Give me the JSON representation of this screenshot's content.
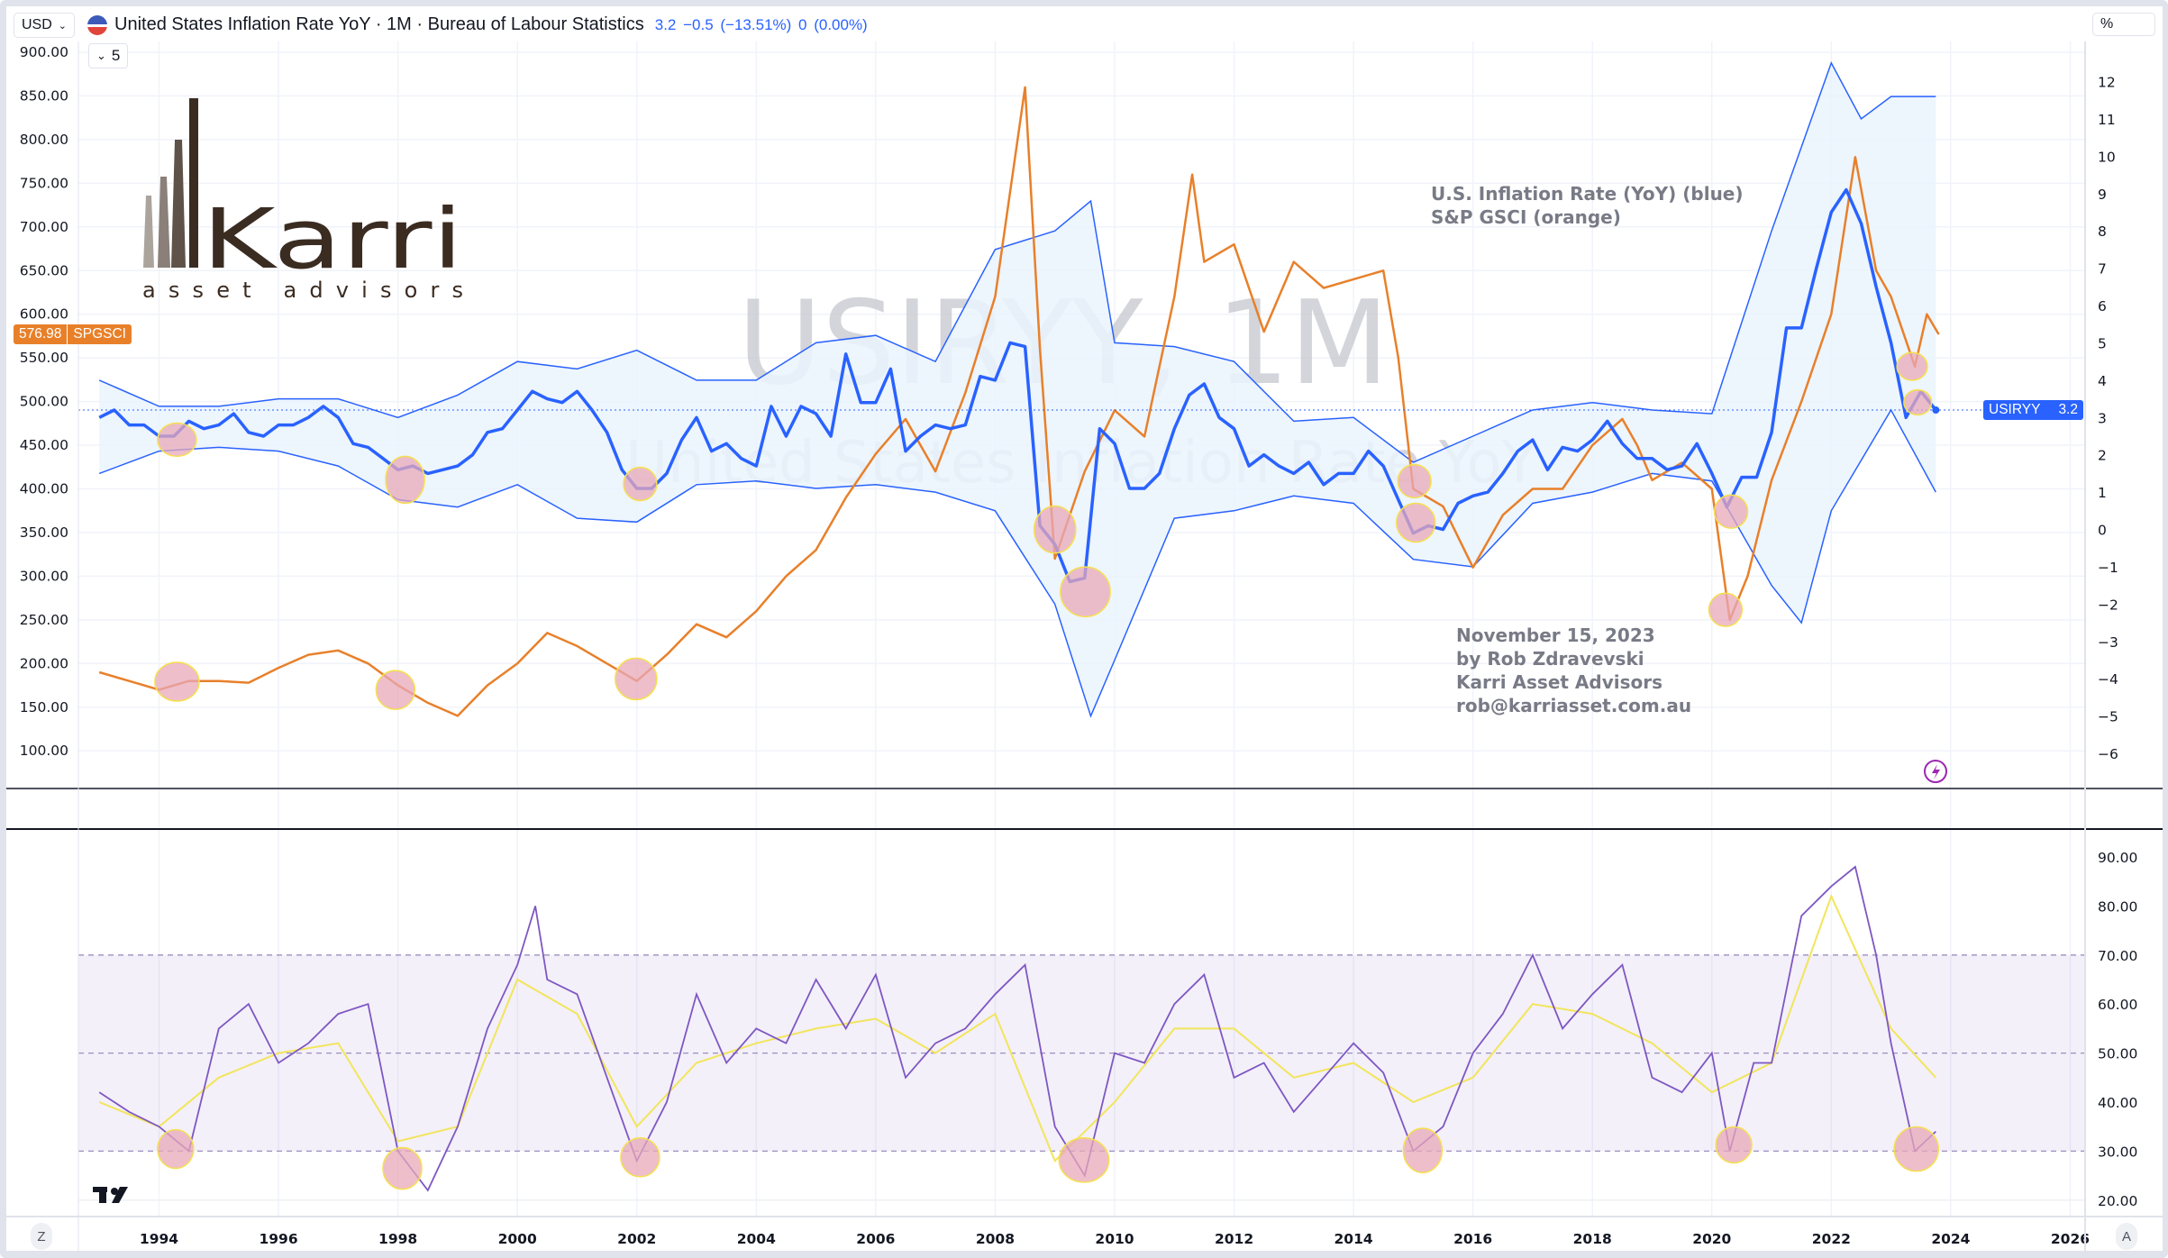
{
  "header": {
    "currency": "USD",
    "title": "United States Inflation Rate YoY · 1M · Bureau of Labour Statistics",
    "values": "3.2  −0.5 (−13.51%)  0 (0.00%)",
    "collapse_count": "5",
    "scale_mode": "%"
  },
  "watermark": {
    "symbol": "USIRYY, 1M",
    "name": "United States Inflation Rate YoY"
  },
  "logo": {
    "brand": "Karri",
    "tagline": "asset advisors"
  },
  "annotations": {
    "legend_lines": [
      "U.S. Inflation Rate (YoY) (blue)",
      "S&P GSCI (orange)"
    ],
    "credit_lines": [
      "November 15, 2023",
      "by Rob Zdravevski",
      "Karri Asset Advisors",
      "rob@karriasset.com.au"
    ]
  },
  "price_tags": {
    "spgsci": {
      "value": "576.98",
      "label": "SPGSCI"
    },
    "usiryy": {
      "label": "USIRYY",
      "value": "3.2"
    }
  },
  "buttons": {
    "auto_scale": "A",
    "zoom": "Z"
  },
  "colors": {
    "inflation": "#2962ff",
    "gsci": "#e8802a",
    "band_fill": "#eaf3fd",
    "rsi": "#7e57c2",
    "rsi_signal": "#f2e55c",
    "highlight_fill": "#e8a8b8",
    "highlight_stroke": "#f5e050"
  },
  "chart_data": [
    {
      "type": "line",
      "pane": "main",
      "x_ticks": [
        "1994",
        "1996",
        "1998",
        "2000",
        "2002",
        "2004",
        "2006",
        "2008",
        "2010",
        "2012",
        "2014",
        "2016",
        "2018",
        "2020",
        "2022",
        "2024",
        "2026"
      ],
      "left_axis": {
        "ticks": [
          "900.00",
          "850.00",
          "800.00",
          "750.00",
          "700.00",
          "650.00",
          "600.00",
          "550.00",
          "500.00",
          "450.00",
          "400.00",
          "350.00",
          "300.00",
          "250.00",
          "200.00",
          "150.00",
          "100.00"
        ],
        "ylim": [
          100,
          900
        ]
      },
      "right_axis": {
        "unit": "%",
        "ticks": [
          "12",
          "11",
          "10",
          "9",
          "8",
          "7",
          "6",
          "5",
          "4",
          "3",
          "2",
          "1",
          "0",
          "−1",
          "−2",
          "−3",
          "−4",
          "−5",
          "−6"
        ],
        "ylim": [
          -6,
          12
        ]
      },
      "series": [
        {
          "name": "USIRYY",
          "axis": "right",
          "x": [
            1993,
            1993.25,
            1993.5,
            1993.75,
            1994,
            1994.25,
            1994.5,
            1994.75,
            1995,
            1995.25,
            1995.5,
            1995.75,
            1996,
            1996.25,
            1996.5,
            1996.75,
            1997,
            1997.25,
            1997.5,
            1997.75,
            1998,
            1998.25,
            1998.5,
            1998.75,
            1999,
            1999.25,
            1999.5,
            1999.75,
            2000,
            2000.25,
            2000.5,
            2000.75,
            2001,
            2001.25,
            2001.5,
            2001.75,
            2002,
            2002.25,
            2002.5,
            2002.75,
            2003,
            2003.25,
            2003.5,
            2003.75,
            2004,
            2004.25,
            2004.5,
            2004.75,
            2005,
            2005.25,
            2005.5,
            2005.75,
            2006,
            2006.25,
            2006.5,
            2006.75,
            2007,
            2007.25,
            2007.5,
            2007.75,
            2008,
            2008.25,
            2008.5,
            2008.75,
            2009,
            2009.25,
            2009.5,
            2009.75,
            2010,
            2010.25,
            2010.5,
            2010.75,
            2011,
            2011.25,
            2011.5,
            2011.75,
            2012,
            2012.25,
            2012.5,
            2012.75,
            2013,
            2013.25,
            2013.5,
            2013.75,
            2014,
            2014.25,
            2014.5,
            2014.75,
            2015,
            2015.25,
            2015.5,
            2015.75,
            2016,
            2016.25,
            2016.5,
            2016.75,
            2017,
            2017.25,
            2017.5,
            2017.75,
            2018,
            2018.25,
            2018.5,
            2018.75,
            2019,
            2019.25,
            2019.5,
            2019.75,
            2020,
            2020.25,
            2020.5,
            2020.75,
            2021,
            2021.25,
            2021.5,
            2021.75,
            2022,
            2022.25,
            2022.5,
            2022.75,
            2023,
            2023.25,
            2023.5,
            2023.75
          ],
          "values": [
            3.0,
            3.2,
            2.8,
            2.8,
            2.5,
            2.5,
            2.9,
            2.7,
            2.8,
            3.1,
            2.6,
            2.5,
            2.8,
            2.8,
            3.0,
            3.3,
            3.0,
            2.3,
            2.2,
            1.9,
            1.6,
            1.7,
            1.5,
            1.6,
            1.7,
            2.0,
            2.6,
            2.7,
            3.2,
            3.7,
            3.5,
            3.4,
            3.7,
            3.2,
            2.6,
            1.6,
            1.1,
            1.1,
            1.5,
            2.4,
            3.0,
            2.1,
            2.3,
            1.9,
            1.7,
            3.3,
            2.5,
            3.3,
            3.1,
            2.5,
            4.7,
            3.4,
            3.4,
            4.3,
            2.1,
            2.5,
            2.8,
            2.7,
            2.8,
            4.1,
            4.0,
            5.0,
            4.9,
            0.1,
            -0.4,
            -1.4,
            -1.3,
            2.7,
            2.3,
            1.1,
            1.1,
            1.5,
            2.7,
            3.6,
            3.9,
            3.0,
            2.7,
            1.7,
            2.0,
            1.7,
            1.5,
            1.8,
            1.2,
            1.5,
            1.5,
            2.1,
            1.7,
            0.8,
            -0.1,
            0.1,
            0.0,
            0.7,
            0.9,
            1.0,
            1.5,
            2.1,
            2.4,
            1.6,
            2.2,
            2.1,
            2.4,
            2.9,
            2.3,
            1.9,
            1.9,
            1.6,
            1.7,
            2.3,
            1.5,
            0.6,
            1.4,
            1.4,
            2.6,
            5.4,
            5.4,
            7.0,
            8.5,
            9.1,
            8.2,
            6.5,
            5.0,
            3.0,
            3.7,
            3.2
          ]
        },
        {
          "name": "Upper band",
          "axis": "right",
          "x": [
            1993,
            1994,
            1995,
            1996,
            1997,
            1998,
            1999,
            2000,
            2001,
            2002,
            2003,
            2004,
            2005,
            2006,
            2007,
            2008,
            2009,
            2009.6,
            2010,
            2011,
            2012,
            2013,
            2014,
            2015,
            2016,
            2017,
            2018,
            2019,
            2020,
            2021,
            2022,
            2022.5,
            2023,
            2023.75
          ],
          "values": [
            4.0,
            3.3,
            3.3,
            3.5,
            3.5,
            3.0,
            3.6,
            4.5,
            4.3,
            4.8,
            4.0,
            4.0,
            5.0,
            5.2,
            4.5,
            7.5,
            8.0,
            8.8,
            5.0,
            4.9,
            4.5,
            2.9,
            3.0,
            1.8,
            2.5,
            3.2,
            3.4,
            3.2,
            3.1,
            8.0,
            12.5,
            11.0,
            11.6,
            11.6
          ]
        },
        {
          "name": "Lower band",
          "axis": "right",
          "x": [
            1993,
            1994,
            1995,
            1996,
            1997,
            1998,
            1999,
            2000,
            2001,
            2002,
            2003,
            2004,
            2005,
            2006,
            2007,
            2008,
            2009,
            2009.6,
            2010,
            2011,
            2012,
            2013,
            2014,
            2015,
            2016,
            2017,
            2018,
            2019,
            2020,
            2021,
            2021.5,
            2022,
            2023,
            2023.75
          ],
          "values": [
            1.5,
            2.1,
            2.2,
            2.1,
            1.7,
            0.8,
            0.6,
            1.2,
            0.3,
            0.2,
            1.2,
            1.3,
            1.1,
            1.2,
            1.0,
            0.5,
            -2.0,
            -5.0,
            -3.5,
            0.3,
            0.5,
            0.9,
            0.7,
            -0.8,
            -1.0,
            0.7,
            1.0,
            1.5,
            1.3,
            -1.5,
            -2.5,
            0.5,
            3.2,
            1.0
          ]
        },
        {
          "name": "SPGSCI",
          "axis": "left",
          "x": [
            1993,
            1993.5,
            1994,
            1994.5,
            1995,
            1995.5,
            1996,
            1996.5,
            1997,
            1997.5,
            1998,
            1998.5,
            1999,
            1999.5,
            2000,
            2000.5,
            2001,
            2001.5,
            2002,
            2002.5,
            2003,
            2003.5,
            2004,
            2004.5,
            2005,
            2005.5,
            2006,
            2006.5,
            2007,
            2007.5,
            2008,
            2008.5,
            2008.75,
            2009,
            2009.5,
            2010,
            2010.5,
            2011,
            2011.3,
            2011.5,
            2012,
            2012.5,
            2013,
            2013.5,
            2014,
            2014.5,
            2014.75,
            2015,
            2015.5,
            2016,
            2016.5,
            2017,
            2017.5,
            2018,
            2018.5,
            2018.75,
            2019,
            2019.5,
            2020,
            2020.3,
            2020.6,
            2021,
            2021.5,
            2022,
            2022.4,
            2022.75,
            2023,
            2023.4,
            2023.6,
            2023.8
          ],
          "values": [
            190,
            180,
            170,
            180,
            180,
            178,
            195,
            210,
            215,
            200,
            175,
            155,
            140,
            175,
            200,
            235,
            220,
            200,
            180,
            210,
            245,
            230,
            260,
            300,
            330,
            390,
            440,
            480,
            420,
            510,
            620,
            860,
            560,
            320,
            420,
            490,
            460,
            620,
            760,
            660,
            680,
            580,
            660,
            630,
            640,
            650,
            550,
            400,
            380,
            310,
            370,
            400,
            400,
            450,
            480,
            450,
            410,
            430,
            400,
            250,
            300,
            410,
            500,
            600,
            780,
            650,
            620,
            540,
            600,
            577
          ]
        }
      ]
    },
    {
      "type": "line",
      "pane": "indicator",
      "right_axis": {
        "ticks": [
          "90.00",
          "80.00",
          "70.00",
          "60.00",
          "50.00",
          "40.00",
          "30.00",
          "20.00"
        ],
        "ylim": [
          20,
          90
        ]
      },
      "bands": {
        "upper": 70,
        "middle": 50,
        "lower": 30
      },
      "series": [
        {
          "name": "RSI",
          "x": [
            1993,
            1993.5,
            1994,
            1994.5,
            1995,
            1995.5,
            1996,
            1996.5,
            1997,
            1997.5,
            1998,
            1998.5,
            1999,
            1999.5,
            2000,
            2000.3,
            2000.5,
            2001,
            2001.5,
            2002,
            2002.5,
            2003,
            2003.5,
            2004,
            2004.5,
            2005,
            2005.5,
            2006,
            2006.5,
            2007,
            2007.5,
            2008,
            2008.5,
            2009,
            2009.5,
            2010,
            2010.5,
            2011,
            2011.5,
            2012,
            2012.5,
            2013,
            2013.5,
            2014,
            2014.5,
            2015,
            2015.5,
            2016,
            2016.5,
            2017,
            2017.5,
            2018,
            2018.5,
            2019,
            2019.5,
            2020,
            2020.3,
            2020.7,
            2021,
            2021.5,
            2022,
            2022.4,
            2022.75,
            2023,
            2023.4,
            2023.75
          ],
          "values": [
            42,
            38,
            35,
            30,
            55,
            60,
            48,
            52,
            58,
            60,
            30,
            22,
            35,
            55,
            68,
            80,
            65,
            62,
            45,
            28,
            40,
            62,
            48,
            55,
            52,
            65,
            55,
            66,
            45,
            52,
            55,
            62,
            68,
            35,
            25,
            50,
            48,
            60,
            66,
            45,
            48,
            38,
            45,
            52,
            46,
            30,
            35,
            50,
            58,
            70,
            55,
            62,
            68,
            45,
            42,
            50,
            30,
            48,
            48,
            78,
            84,
            88,
            70,
            52,
            30,
            34
          ]
        },
        {
          "name": "Signal",
          "x": [
            1993,
            1994,
            1995,
            1996,
            1997,
            1998,
            1999,
            2000,
            2001,
            2002,
            2003,
            2004,
            2005,
            2006,
            2007,
            2008,
            2009,
            2010,
            2011,
            2012,
            2013,
            2014,
            2015,
            2016,
            2017,
            2018,
            2019,
            2020,
            2021,
            2022,
            2023,
            2023.75
          ],
          "values": [
            40,
            35,
            45,
            50,
            52,
            32,
            35,
            65,
            58,
            35,
            48,
            52,
            55,
            57,
            50,
            58,
            28,
            40,
            55,
            55,
            45,
            48,
            40,
            45,
            60,
            58,
            52,
            42,
            48,
            82,
            55,
            45
          ]
        }
      ]
    }
  ]
}
